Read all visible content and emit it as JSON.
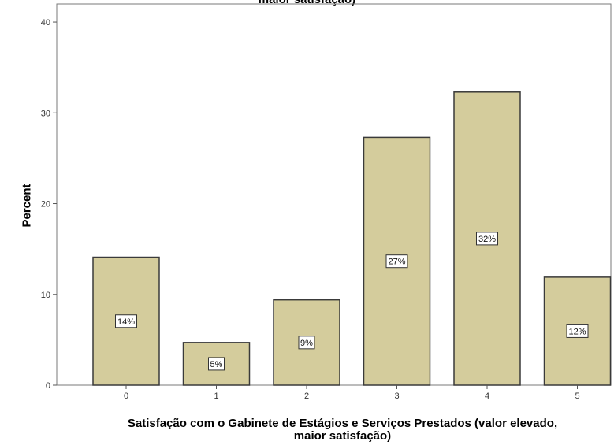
{
  "chart_data": {
    "type": "bar",
    "title": "maior satisfação)",
    "xlabel_line1": "Satisfação com o Gabinete de Estágios e Serviços Prestados (valor elevado,",
    "xlabel_line2": "maior satisfação)",
    "ylabel": "Percent",
    "categories": [
      "0",
      "1",
      "2",
      "3",
      "4",
      "5"
    ],
    "values": [
      14.1,
      4.7,
      9.4,
      27.3,
      32.3,
      11.9
    ],
    "data_labels": [
      "14%",
      "5%",
      "9%",
      "27%",
      "32%",
      "12%"
    ],
    "ylim": [
      0,
      42
    ],
    "yticks": [
      0,
      10,
      20,
      30,
      40
    ],
    "grid": false,
    "bar_color": "#d4cc9c",
    "bar_stroke": "#3a3a3a"
  }
}
